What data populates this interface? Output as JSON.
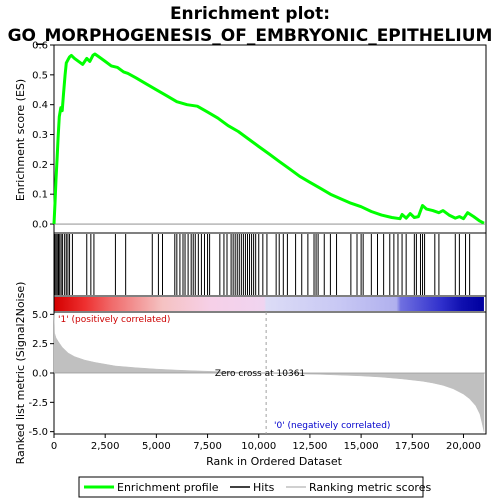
{
  "chart_data": {
    "type": "line",
    "title_line1": "Enrichment plot:",
    "title_line2": "GO_MORPHOGENESIS_OF_EMBRYONIC_EPITHELIUM",
    "es_panel": {
      "ylabel": "Enrichment score (ES)",
      "ylim": [
        -0.03,
        0.6
      ],
      "yticks": [
        "0.0",
        "0.1",
        "0.2",
        "0.3",
        "0.4",
        "0.5",
        "0.6"
      ],
      "series": [
        {
          "name": "Enrichment profile",
          "color": "#00ff00",
          "x": [
            0,
            50,
            100,
            150,
            200,
            260,
            330,
            400,
            470,
            540,
            600,
            680,
            760,
            850,
            1000,
            1200,
            1400,
            1600,
            1750,
            1900,
            2000,
            2200,
            2500,
            2800,
            3100,
            3400,
            3600,
            4000,
            4500,
            5000,
            5500,
            6000,
            6500,
            7000,
            7500,
            8000,
            8500,
            9000,
            9500,
            10000,
            10500,
            11000,
            11500,
            12000,
            12500,
            13000,
            13500,
            14000,
            14500,
            15000,
            15500,
            16000,
            16500,
            16900,
            17000,
            17200,
            17400,
            17600,
            17800,
            18000,
            18200,
            18500,
            18800,
            19000,
            19300,
            19600,
            19800,
            20000,
            20200,
            20500,
            20800,
            21000
          ],
          "y": [
            0.0,
            0.07,
            0.15,
            0.22,
            0.29,
            0.36,
            0.39,
            0.38,
            0.44,
            0.5,
            0.54,
            0.55,
            0.56,
            0.565,
            0.555,
            0.545,
            0.535,
            0.555,
            0.545,
            0.565,
            0.57,
            0.56,
            0.545,
            0.53,
            0.525,
            0.51,
            0.505,
            0.49,
            0.47,
            0.45,
            0.43,
            0.41,
            0.4,
            0.395,
            0.375,
            0.355,
            0.33,
            0.31,
            0.285,
            0.26,
            0.235,
            0.21,
            0.185,
            0.16,
            0.14,
            0.12,
            0.1,
            0.085,
            0.07,
            0.058,
            0.042,
            0.03,
            0.022,
            0.018,
            0.032,
            0.02,
            0.035,
            0.022,
            0.025,
            0.062,
            0.05,
            0.045,
            0.038,
            0.045,
            0.03,
            0.02,
            0.025,
            0.018,
            0.038,
            0.025,
            0.01,
            0.003
          ]
        }
      ]
    },
    "hits": {
      "name": "Hits",
      "positions": [
        40,
        100,
        160,
        220,
        280,
        350,
        420,
        520,
        600,
        680,
        760,
        900,
        1600,
        1800,
        1950,
        3000,
        3500,
        4800,
        5100,
        5300,
        5900,
        6000,
        6150,
        6300,
        6400,
        6550,
        6700,
        6800,
        6900,
        7050,
        7200,
        7350,
        7500,
        7600,
        8100,
        8300,
        8450,
        8650,
        8750,
        8850,
        8950,
        9050,
        9150,
        9250,
        9350,
        9450,
        9550,
        9650,
        9750,
        9850,
        10000,
        10200,
        10400,
        10850,
        11000,
        11200,
        11400,
        11800,
        12100,
        12400,
        12700,
        12800,
        12900,
        13200,
        13500,
        13800,
        14500,
        14800,
        15000,
        15100,
        15500,
        15800,
        16100,
        16400,
        16600,
        16800,
        17000,
        17200,
        17600,
        17700,
        17900,
        18000,
        18100,
        18600,
        18800,
        19600,
        19800,
        20100,
        20300
      ]
    },
    "metric_panel": {
      "ylabel": "Ranked list metric (Signal2Noise)",
      "ylim": [
        -5.2,
        5.2
      ],
      "yticks": [
        "5.0",
        "2.5",
        "0.0",
        "-2.5",
        "-5.0"
      ],
      "series": [
        {
          "name": "Ranking metric scores",
          "color": "#c0c0c0",
          "x": [
            0,
            30,
            100,
            200,
            400,
            700,
            1000,
            1500,
            2000,
            3000,
            4000,
            5000,
            6000,
            7000,
            8000,
            9000,
            10000,
            10361,
            11000,
            12000,
            13000,
            14000,
            15000,
            16000,
            17000,
            18000,
            18500,
            19000,
            19500,
            20000,
            20300,
            20600,
            20800,
            20900,
            21000
          ],
          "y": [
            5.0,
            3.4,
            3.0,
            2.7,
            2.2,
            1.7,
            1.4,
            1.1,
            0.9,
            0.6,
            0.45,
            0.33,
            0.25,
            0.18,
            0.12,
            0.07,
            0.02,
            0.0,
            -0.04,
            -0.08,
            -0.12,
            -0.18,
            -0.25,
            -0.35,
            -0.5,
            -0.7,
            -0.85,
            -1.05,
            -1.35,
            -1.8,
            -2.2,
            -2.8,
            -3.5,
            -4.2,
            -5.0
          ]
        }
      ],
      "zero_cross_text": "Zero cross at 10361",
      "zero_cross": 10361,
      "pos_label": "'1' (positively correlated)",
      "neg_label": "'0' (negatively correlated)",
      "pos_color": "#cc0000",
      "neg_color": "#0000cc"
    },
    "xaxis": {
      "label": "Rank in Ordered Dataset",
      "xlim": [
        0,
        21100
      ],
      "ticks": [
        0,
        2500,
        5000,
        7500,
        10000,
        12500,
        15000,
        17500,
        20000
      ],
      "tick_labels": [
        "0",
        "2,500",
        "5,000",
        "7,500",
        "10,000",
        "12,500",
        "15,000",
        "17,500",
        "20,000"
      ]
    },
    "heatbar": {
      "stops": [
        {
          "x": 0,
          "color": "#d40000"
        },
        {
          "x": 1500,
          "color": "#ee3030"
        },
        {
          "x": 2800,
          "color": "#f06a6a"
        },
        {
          "x": 5300,
          "color": "#f5c2c2"
        },
        {
          "x": 7700,
          "color": "#f6d0e8"
        },
        {
          "x": 10300,
          "color": "#f0d4f0"
        },
        {
          "x": 10400,
          "color": "#dcdcf6"
        },
        {
          "x": 14000,
          "color": "#c8c8f4"
        },
        {
          "x": 16800,
          "color": "#b0b0ee"
        },
        {
          "x": 17000,
          "color": "#7070e0"
        },
        {
          "x": 19000,
          "color": "#3030cc"
        },
        {
          "x": 20000,
          "color": "#1010b0"
        },
        {
          "x": 21000,
          "color": "#0000a0"
        }
      ]
    },
    "legend": [
      {
        "label": "Enrichment profile",
        "color": "#00ff00",
        "kind": "thick-line"
      },
      {
        "label": "Hits",
        "color": "#000000",
        "kind": "line"
      },
      {
        "label": "Ranking metric scores",
        "color": "#c0c0c0",
        "kind": "line"
      }
    ]
  }
}
